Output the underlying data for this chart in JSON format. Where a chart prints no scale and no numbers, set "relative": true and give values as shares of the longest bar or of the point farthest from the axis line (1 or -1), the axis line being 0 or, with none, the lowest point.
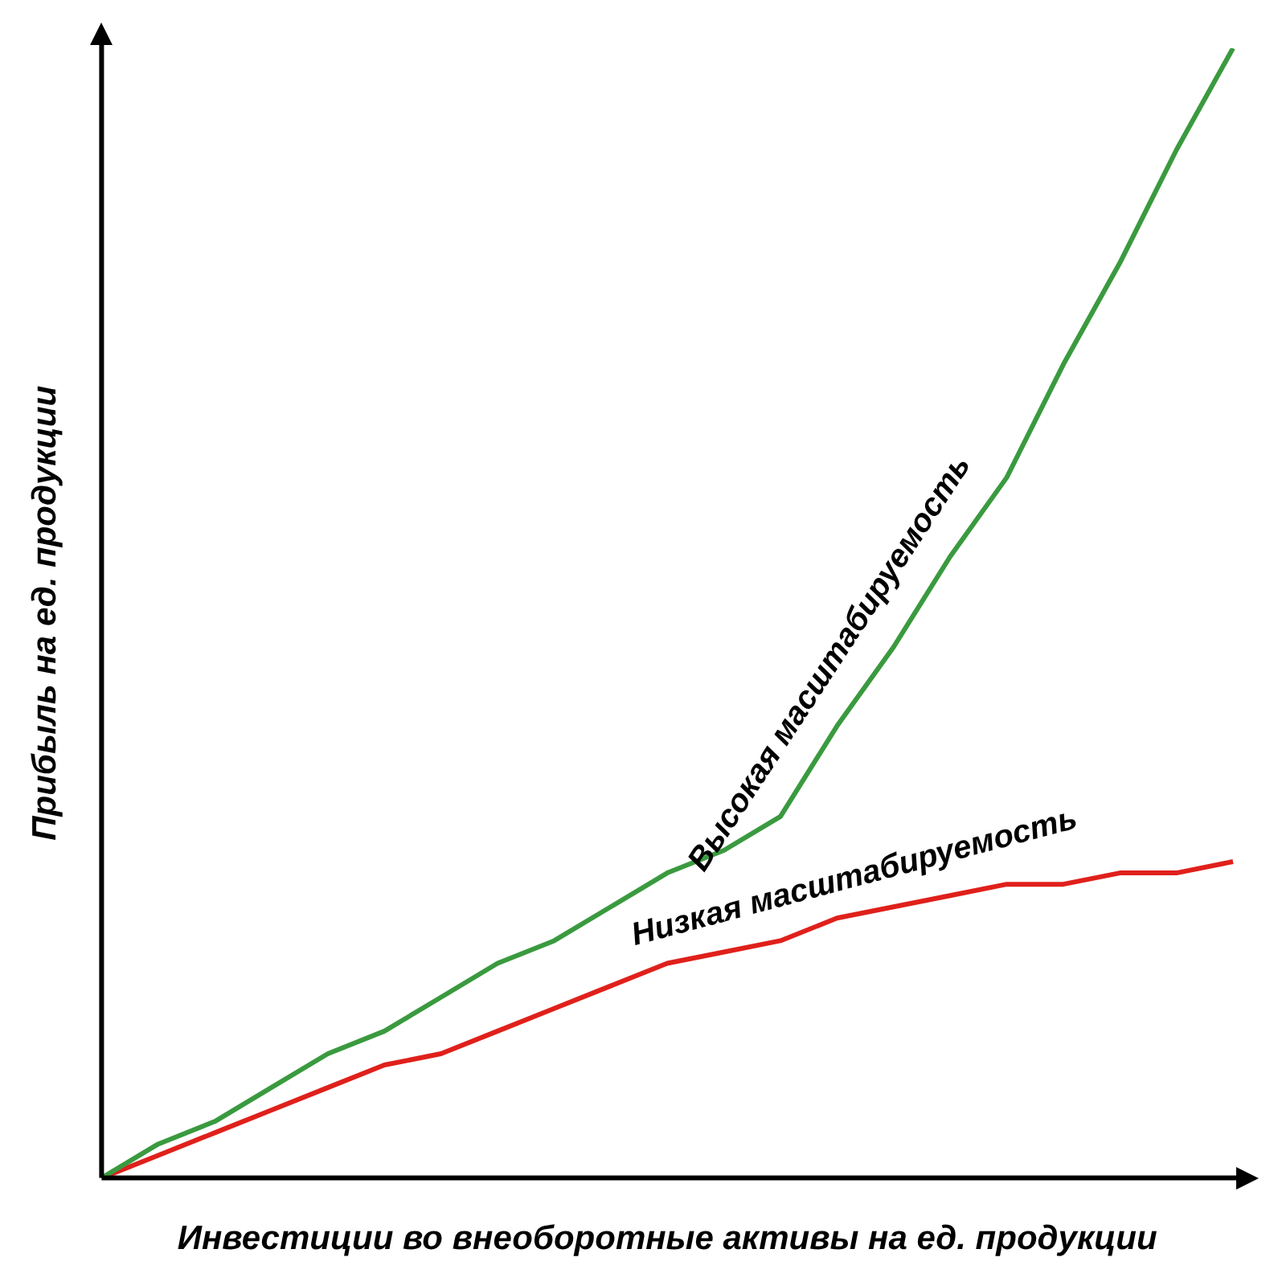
{
  "chart_data": {
    "type": "line",
    "xlabel": "Инвестиции во внеоборотные активы на ед. продукции",
    "ylabel": "Прибыль на ед. продукции",
    "relative": true,
    "legend": false,
    "grid": false,
    "marker": "none",
    "categories": [
      null,
      null,
      null,
      null,
      null,
      null,
      null,
      null,
      null,
      null,
      null,
      null,
      null,
      null,
      null,
      null,
      null,
      null,
      null,
      null,
      null
    ],
    "series": [
      {
        "name": "Высокая масштабируемость",
        "color": "#3a9a3f",
        "values": [
          0,
          0.03,
          0.05,
          0.08,
          0.11,
          0.13,
          0.16,
          0.19,
          0.21,
          0.24,
          0.27,
          0.29,
          0.32,
          0.4,
          0.47,
          0.55,
          0.62,
          0.72,
          0.81,
          0.91,
          1
        ]
      },
      {
        "name": "Низкая масштабируемость",
        "color": "#e0201b",
        "values": [
          0,
          0.02,
          0.04,
          0.06,
          0.08,
          0.1,
          0.11,
          0.13,
          0.15,
          0.17,
          0.19,
          0.2,
          0.21,
          0.23,
          0.24,
          0.25,
          0.26,
          0.26,
          0.27,
          0.27,
          0.28
        ]
      }
    ]
  }
}
